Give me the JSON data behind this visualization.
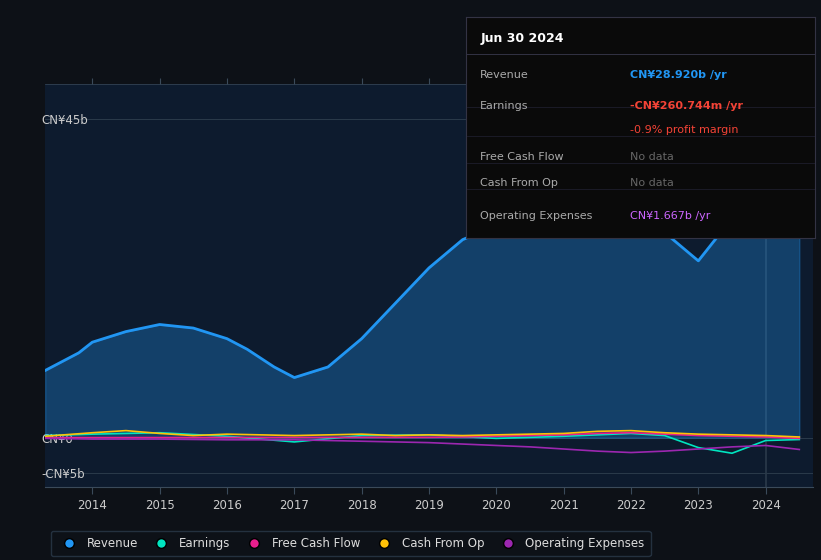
{
  "background_color": "#0d1117",
  "plot_bg_color": "#0d1b2e",
  "info_box": {
    "date": "Jun 30 2024",
    "rows": [
      {
        "label": "Revenue",
        "value": "CN¥28.920b /yr",
        "value_color": "#2196f3",
        "label_color": "#aaaaaa"
      },
      {
        "label": "Earnings",
        "value": "-CN¥260.744m /yr",
        "value_color": "#f44336",
        "label_color": "#aaaaaa"
      },
      {
        "label": "",
        "value": "-0.9% profit margin",
        "value_color": "#f44336",
        "label_color": "#aaaaaa"
      },
      {
        "label": "Free Cash Flow",
        "value": "No data",
        "value_color": "#666666",
        "label_color": "#aaaaaa"
      },
      {
        "label": "Cash From Op",
        "value": "No data",
        "value_color": "#666666",
        "label_color": "#aaaaaa"
      },
      {
        "label": "Operating Expenses",
        "value": "CN¥1.667b /yr",
        "value_color": "#cc66ff",
        "label_color": "#aaaaaa"
      }
    ]
  },
  "ylabel_top": "CN¥45b",
  "ylabel_mid": "CN¥0",
  "ylabel_bot": "-CN¥5b",
  "x_ticks": [
    2014,
    2015,
    2016,
    2017,
    2018,
    2019,
    2020,
    2021,
    2022,
    2023,
    2024
  ],
  "ylim_min": -7000000000,
  "ylim_max": 50000000000,
  "ytick_top": 45000000000,
  "ytick_zero": 0,
  "ytick_bot": -5000000000,
  "xlim_min": 2013.3,
  "xlim_max": 2024.7,
  "legend": [
    {
      "label": "Revenue",
      "color": "#2196f3"
    },
    {
      "label": "Earnings",
      "color": "#00e5c0"
    },
    {
      "label": "Free Cash Flow",
      "color": "#e91e8c"
    },
    {
      "label": "Cash From Op",
      "color": "#ffc107"
    },
    {
      "label": "Operating Expenses",
      "color": "#9c27b0"
    }
  ],
  "revenue_x": [
    2013.3,
    2013.8,
    2014.0,
    2014.5,
    2015.0,
    2015.5,
    2016.0,
    2016.3,
    2016.7,
    2017.0,
    2017.5,
    2018.0,
    2018.5,
    2019.0,
    2019.5,
    2020.0,
    2020.5,
    2021.0,
    2021.3,
    2021.5,
    2022.0,
    2022.5,
    2023.0,
    2023.5,
    2024.0,
    2024.5
  ],
  "revenue_y": [
    9500000000,
    12000000000,
    13500000000,
    15000000000,
    16000000000,
    15500000000,
    14000000000,
    12500000000,
    10000000000,
    8500000000,
    10000000000,
    14000000000,
    19000000000,
    24000000000,
    28000000000,
    30000000000,
    30500000000,
    32000000000,
    42000000000,
    39000000000,
    35000000000,
    29000000000,
    25000000000,
    31000000000,
    29500000000,
    28920000000
  ],
  "earnings_x": [
    2013.3,
    2014.0,
    2015.0,
    2016.0,
    2017.0,
    2018.0,
    2019.0,
    2020.0,
    2021.0,
    2021.5,
    2022.0,
    2022.5,
    2023.0,
    2023.5,
    2024.0,
    2024.5
  ],
  "earnings_y": [
    300000000,
    500000000,
    700000000,
    200000000,
    -600000000,
    300000000,
    400000000,
    -100000000,
    200000000,
    400000000,
    600000000,
    300000000,
    -1400000000,
    -2200000000,
    -400000000,
    -260744000
  ],
  "fcf_x": [
    2013.3,
    2019.0,
    2019.5,
    2020.0,
    2020.5,
    2021.0,
    2021.5,
    2022.0,
    2022.5,
    2023.0,
    2023.5,
    2024.0,
    2024.5
  ],
  "fcf_y": [
    0,
    50000000,
    100000000,
    200000000,
    300000000,
    400000000,
    600000000,
    700000000,
    500000000,
    300000000,
    200000000,
    100000000,
    -100000000
  ],
  "cashop_x": [
    2013.3,
    2014.0,
    2014.5,
    2015.0,
    2015.5,
    2016.0,
    2016.5,
    2017.0,
    2017.5,
    2018.0,
    2018.5,
    2019.0,
    2019.5,
    2020.0,
    2020.5,
    2021.0,
    2021.5,
    2022.0,
    2022.5,
    2023.0,
    2023.5,
    2024.0,
    2024.5
  ],
  "cashop_y": [
    200000000,
    700000000,
    1000000000,
    600000000,
    300000000,
    500000000,
    400000000,
    300000000,
    400000000,
    500000000,
    300000000,
    400000000,
    300000000,
    400000000,
    500000000,
    600000000,
    900000000,
    1000000000,
    700000000,
    500000000,
    400000000,
    300000000,
    100000000
  ],
  "opex_x": [
    2013.3,
    2014.0,
    2015.0,
    2016.0,
    2017.0,
    2018.0,
    2019.0,
    2019.5,
    2020.0,
    2020.5,
    2021.0,
    2021.5,
    2022.0,
    2022.5,
    2023.0,
    2023.5,
    2024.0,
    2024.5
  ],
  "opex_y": [
    -100000000,
    -200000000,
    -200000000,
    -300000000,
    -300000000,
    -500000000,
    -700000000,
    -900000000,
    -1100000000,
    -1300000000,
    -1600000000,
    -1900000000,
    -2100000000,
    -1900000000,
    -1600000000,
    -1300000000,
    -1100000000,
    -1667000000
  ]
}
